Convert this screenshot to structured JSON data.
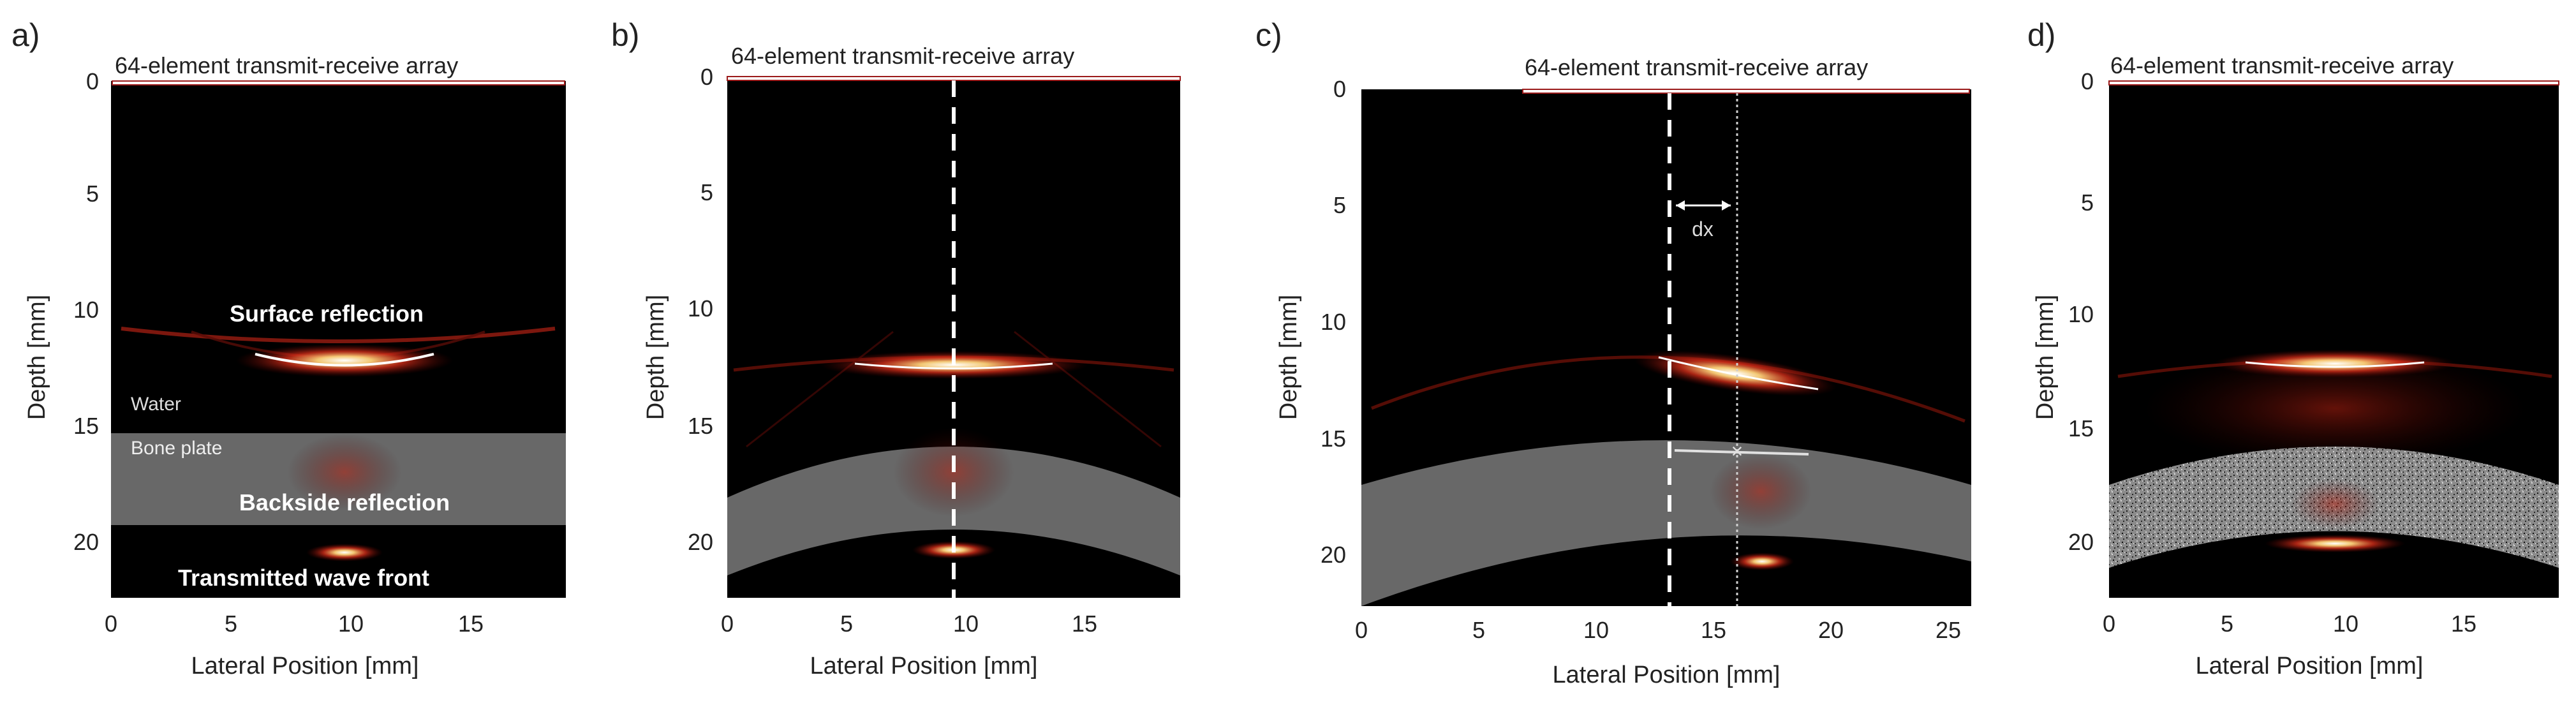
{
  "panels": [
    {
      "label": "a)",
      "array_label": "64-element transmit-receive array",
      "xlabel": "Lateral Position [mm]",
      "ylabel": "Depth [mm]",
      "xticks": [
        "0",
        "5",
        "10",
        "15"
      ],
      "yticks": [
        "0",
        "5",
        "10",
        "15",
        "20"
      ],
      "annotations": {
        "surface": "Surface reflection",
        "water": "Water",
        "bone": "Bone plate",
        "backside": "Backside reflection",
        "transmitted": "Transmitted wave front"
      }
    },
    {
      "label": "b)",
      "array_label": "64-element transmit-receive array",
      "xlabel": "Lateral Position [mm]",
      "ylabel": "Depth [mm]",
      "xticks": [
        "0",
        "5",
        "10",
        "15"
      ],
      "yticks": [
        "0",
        "5",
        "10",
        "15",
        "20"
      ]
    },
    {
      "label": "c)",
      "array_label": "64-element transmit-receive array",
      "xlabel": "Lateral Position [mm]",
      "ylabel": "Depth [mm]",
      "xticks": [
        "0",
        "5",
        "10",
        "15",
        "20",
        "25"
      ],
      "yticks": [
        "0",
        "5",
        "10",
        "15",
        "20"
      ],
      "dx_label": "dx"
    },
    {
      "label": "d)",
      "array_label": "64-element transmit-receive array",
      "xlabel": "Lateral Position [mm]",
      "ylabel": "Depth [mm]",
      "xticks": [
        "0",
        "5",
        "10",
        "15"
      ],
      "yticks": [
        "0",
        "5",
        "10",
        "15",
        "20"
      ]
    }
  ],
  "chart_data": [
    {
      "type": "heatmap",
      "title": "a)",
      "xlabel": "Lateral Position [mm]",
      "ylabel": "Depth [mm]",
      "xlim": [
        0,
        19
      ],
      "ylim": [
        0,
        22
      ],
      "bone_plate": {
        "shape": "flat",
        "top_depth": 15,
        "bottom_depth": 18.9
      },
      "reflections": [
        {
          "name": "Surface reflection",
          "x": 9.7,
          "depth": 12
        },
        {
          "name": "Backside reflection",
          "x": 9.7,
          "depth": 16.5
        },
        {
          "name": "Transmitted wave front",
          "x": 9.7,
          "depth": 20
        }
      ]
    },
    {
      "type": "heatmap",
      "title": "b)",
      "xlabel": "Lateral Position [mm]",
      "ylabel": "Depth [mm]",
      "xlim": [
        0,
        19
      ],
      "ylim": [
        0,
        22
      ],
      "bone_plate": {
        "shape": "curved",
        "top_depth_center": 15.6,
        "bottom_depth_center": 19
      },
      "center_line_x": 9.4,
      "reflections": [
        {
          "name": "surface",
          "x": 9.4,
          "depth": 12.1
        },
        {
          "name": "backside",
          "x": 9.4,
          "depth": 16.5
        },
        {
          "name": "transmitted",
          "x": 9.4,
          "depth": 20
        }
      ]
    },
    {
      "type": "heatmap",
      "title": "c)",
      "xlabel": "Lateral Position [mm]",
      "ylabel": "Depth [mm]",
      "xlim": [
        0,
        26
      ],
      "ylim": [
        0,
        22
      ],
      "bone_plate": {
        "shape": "curved",
        "top_depth_center": 15,
        "bottom_depth_center": 19
      },
      "center_line_x": 13.2,
      "offset_line_x": 16.1,
      "marker": {
        "x": 16.1,
        "depth": 15.2
      },
      "reflections": [
        {
          "name": "surface",
          "x": 15.5,
          "depth": 12.3
        },
        {
          "name": "backside",
          "x": 17,
          "depth": 17.3
        },
        {
          "name": "transmitted",
          "x": 17,
          "depth": 20.1
        }
      ]
    },
    {
      "type": "heatmap",
      "title": "d)",
      "xlabel": "Lateral Position [mm]",
      "ylabel": "Depth [mm]",
      "xlim": [
        0,
        19
      ],
      "ylim": [
        0,
        22
      ],
      "bone_plate": {
        "shape": "curved-porous",
        "top_depth_center": 15.3,
        "bottom_depth_center": 19.2
      },
      "reflections": [
        {
          "name": "surface",
          "x": 9.6,
          "depth": 12
        },
        {
          "name": "backside",
          "x": 9.6,
          "depth": 18
        },
        {
          "name": "transmitted",
          "x": 9.6,
          "depth": 19.7
        }
      ]
    }
  ]
}
